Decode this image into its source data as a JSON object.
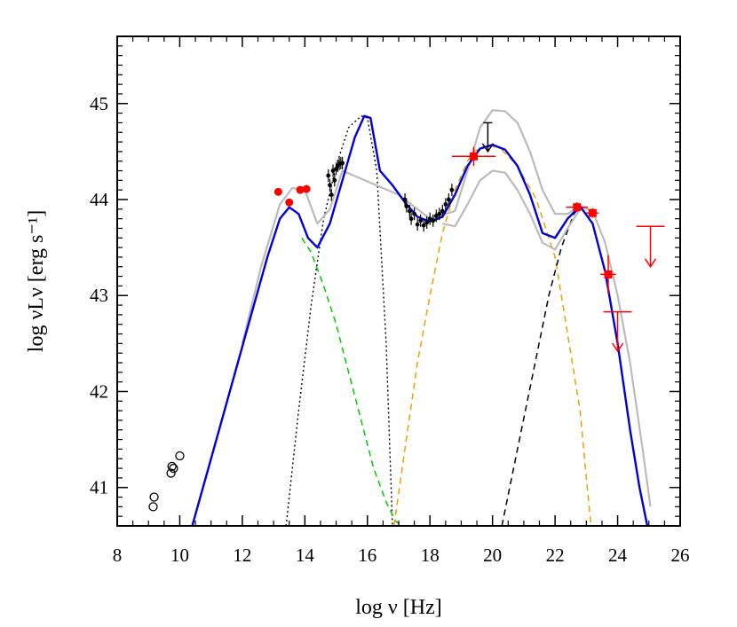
{
  "chart_data": {
    "type": "line",
    "title": "",
    "xlabel": "log ν [Hz]",
    "ylabel": "log νLν [erg s⁻¹]",
    "xlim": [
      8,
      26
    ],
    "ylim": [
      40.6,
      45.7
    ],
    "xticks": [
      8,
      10,
      12,
      14,
      16,
      18,
      20,
      22,
      24,
      26
    ],
    "yticks": [
      41,
      42,
      43,
      44,
      45
    ],
    "grid": false,
    "legend": "none",
    "colors": {
      "total_model": "#0000dd",
      "envelope": "#bbbbbb",
      "synchrotron": "#00cc00",
      "disk": "#000000",
      "ssc": "#f0a000",
      "ec": "#000000",
      "data_red": "#ff0000",
      "data_black": "#000000"
    },
    "series": [
      {
        "style": "solid-blue",
        "x": [
          10.4,
          11.0,
          11.6,
          12.2,
          12.8,
          13.2,
          13.5,
          13.8,
          14.1,
          14.4,
          14.8,
          15.2,
          15.6,
          15.9,
          16.1,
          16.4,
          16.8,
          17.2,
          17.6,
          18.0,
          18.4,
          18.8,
          19.2,
          19.6,
          20.0,
          20.4,
          20.8,
          21.2,
          21.6,
          22.0,
          22.4,
          22.8,
          23.2,
          23.6,
          24.0,
          24.4,
          24.7,
          24.95
        ],
        "y": [
          40.6,
          41.3,
          42.0,
          42.7,
          43.4,
          43.8,
          43.92,
          43.85,
          43.6,
          43.5,
          43.75,
          44.2,
          44.65,
          44.87,
          44.85,
          44.3,
          44.15,
          43.97,
          43.82,
          43.77,
          43.82,
          44.05,
          44.35,
          44.53,
          44.57,
          44.52,
          44.35,
          44.05,
          43.65,
          43.6,
          43.8,
          43.93,
          43.75,
          43.25,
          42.5,
          41.6,
          41.0,
          40.6
        ]
      },
      {
        "style": "solid-grey-upper",
        "x": [
          12.0,
          12.6,
          13.2,
          13.6,
          14.0,
          14.4,
          14.8,
          15.2,
          17.0,
          18.0,
          18.8,
          19.2,
          19.6,
          20.0,
          20.4,
          20.8,
          21.2,
          21.6,
          22.0,
          22.4,
          22.8,
          23.2,
          23.6,
          24.0,
          24.4,
          24.8,
          25.05
        ],
        "y": [
          42.5,
          43.3,
          43.95,
          44.12,
          44.1,
          43.75,
          43.9,
          44.3,
          44.05,
          43.8,
          43.88,
          44.3,
          44.75,
          44.93,
          44.92,
          44.8,
          44.5,
          44.1,
          43.85,
          43.85,
          43.93,
          43.88,
          43.55,
          43.0,
          42.3,
          41.4,
          40.8
        ]
      },
      {
        "style": "solid-grey-lower",
        "x": [
          18.4,
          18.8,
          19.2,
          19.6,
          20.0,
          20.4,
          20.8,
          21.2,
          21.6,
          22.0,
          22.4,
          22.8
        ],
        "y": [
          43.75,
          43.72,
          43.95,
          44.2,
          44.3,
          44.28,
          44.1,
          43.85,
          43.55,
          43.48,
          43.7,
          43.9
        ]
      },
      {
        "style": "dashed-green",
        "x": [
          13.9,
          14.2,
          14.6,
          15.0,
          15.4,
          15.8,
          16.2,
          16.6,
          16.9,
          17.1
        ],
        "y": [
          43.6,
          43.45,
          43.1,
          42.7,
          42.2,
          41.7,
          41.2,
          40.85,
          40.65,
          40.6
        ]
      },
      {
        "style": "dotted-black",
        "x": [
          13.4,
          13.8,
          14.2,
          14.6,
          15.0,
          15.4,
          15.8,
          16.0,
          16.3,
          16.6,
          16.8
        ],
        "y": [
          40.6,
          41.8,
          42.9,
          43.8,
          44.35,
          44.75,
          44.87,
          44.85,
          44.3,
          42.5,
          40.6
        ]
      },
      {
        "style": "dashed-orange",
        "x": [
          16.85,
          17.2,
          17.6,
          18.0,
          18.4,
          18.8,
          19.2,
          19.4,
          19.7,
          20.2,
          20.8,
          21.4,
          22.0,
          22.4,
          22.8,
          23.0,
          23.15
        ],
        "y": [
          40.6,
          41.4,
          42.3,
          43.0,
          43.65,
          44.1,
          44.4,
          44.5,
          44.55,
          44.55,
          44.35,
          44.0,
          43.4,
          42.6,
          41.8,
          41.1,
          40.6
        ]
      },
      {
        "style": "dashed-black",
        "x": [
          20.3,
          20.8,
          21.3,
          21.8,
          22.2,
          22.6,
          22.8
        ],
        "y": [
          40.6,
          41.4,
          42.2,
          43.0,
          43.5,
          43.85,
          43.92
        ]
      }
    ],
    "points": {
      "red_dots": [
        {
          "x": 13.15,
          "y": 44.08
        },
        {
          "x": 13.5,
          "y": 43.97
        },
        {
          "x": 13.85,
          "y": 44.1
        },
        {
          "x": 14.05,
          "y": 44.11
        }
      ],
      "red_squares": [
        {
          "x": 19.4,
          "y": 44.45,
          "xerr": 0.7,
          "yerr": 0.1
        },
        {
          "x": 22.7,
          "y": 43.92,
          "xerr": 0.35,
          "yerr": 0.05
        },
        {
          "x": 23.2,
          "y": 43.86,
          "xerr": 0.2,
          "yerr": 0.05
        },
        {
          "x": 23.7,
          "y": 43.22,
          "xerr": 0.25,
          "yerr": 0.2
        }
      ],
      "red_upper_limits": [
        {
          "x": 25.05,
          "y": 43.72,
          "to": 43.3
        },
        {
          "x": 24.0,
          "y": 42.83,
          "to": 42.42
        }
      ],
      "black_upper_limits": [
        {
          "x": 19.85,
          "y": 44.8,
          "to": 44.5
        }
      ],
      "open_circles": [
        {
          "x": 9.18,
          "y": 40.9
        },
        {
          "x": 9.15,
          "y": 40.8
        },
        {
          "x": 9.75,
          "y": 41.22
        },
        {
          "x": 9.8,
          "y": 41.2
        },
        {
          "x": 9.72,
          "y": 41.15
        },
        {
          "x": 10.0,
          "y": 41.33
        }
      ],
      "black_data": [
        {
          "x": 14.75,
          "y": 44.25
        },
        {
          "x": 14.8,
          "y": 44.15
        },
        {
          "x": 14.85,
          "y": 44.05
        },
        {
          "x": 14.9,
          "y": 44.3
        },
        {
          "x": 14.95,
          "y": 44.2
        },
        {
          "x": 15.0,
          "y": 44.32
        },
        {
          "x": 15.05,
          "y": 44.35
        },
        {
          "x": 15.1,
          "y": 44.37
        },
        {
          "x": 15.15,
          "y": 44.38
        },
        {
          "x": 15.2,
          "y": 44.38
        },
        {
          "x": 17.2,
          "y": 44.0
        },
        {
          "x": 17.25,
          "y": 43.93
        },
        {
          "x": 17.35,
          "y": 43.88
        },
        {
          "x": 17.4,
          "y": 43.8
        },
        {
          "x": 17.5,
          "y": 43.85
        },
        {
          "x": 17.6,
          "y": 43.74
        },
        {
          "x": 17.7,
          "y": 43.78
        },
        {
          "x": 17.8,
          "y": 43.73
        },
        {
          "x": 17.9,
          "y": 43.76
        },
        {
          "x": 18.0,
          "y": 43.8
        },
        {
          "x": 18.1,
          "y": 43.78
        },
        {
          "x": 18.2,
          "y": 43.83
        },
        {
          "x": 18.3,
          "y": 43.85
        },
        {
          "x": 18.4,
          "y": 43.88
        },
        {
          "x": 18.5,
          "y": 43.95
        },
        {
          "x": 18.6,
          "y": 44.0
        },
        {
          "x": 18.7,
          "y": 44.1
        }
      ]
    }
  }
}
